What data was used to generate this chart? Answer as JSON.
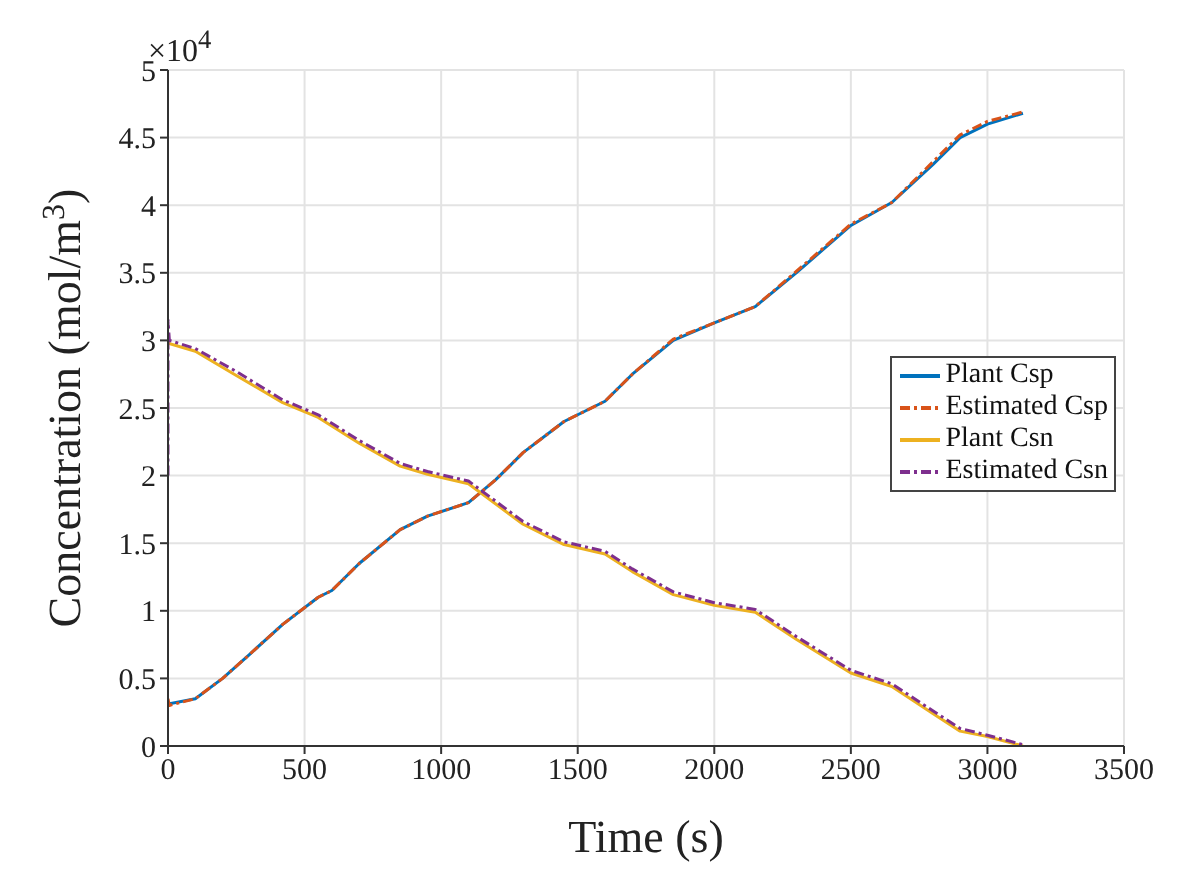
{
  "chart_data": {
    "type": "line",
    "xlabel": "Time (s)",
    "ylabel": "Concentration (mol/m$^{3}$)",
    "annotations": [
      "×10$^{4}$"
    ],
    "xlim": [
      0,
      3500
    ],
    "xticks": [
      0,
      500,
      1000,
      1500,
      2000,
      2500,
      3000,
      3500
    ],
    "ylim": [
      0,
      5
    ],
    "yticks": [
      0,
      0.5,
      1,
      1.5,
      2,
      2.5,
      3,
      3.5,
      4,
      4.5,
      5
    ],
    "grid": true,
    "legend": "right",
    "marker": "none",
    "series": [
      {
        "name": "Plant Csp",
        "color": "#0072bd",
        "line_style": "solid",
        "x": [
          0,
          100,
          200,
          300,
          420,
          550,
          600,
          700,
          850,
          950,
          1100,
          1200,
          1300,
          1450,
          1600,
          1700,
          1850,
          2000,
          2150,
          2300,
          2500,
          2650,
          2800,
          2900,
          3000,
          3130
        ],
        "values": [
          0.31,
          0.35,
          0.5,
          0.68,
          0.9,
          1.1,
          1.15,
          1.35,
          1.6,
          1.7,
          1.8,
          1.97,
          2.17,
          2.4,
          2.55,
          2.75,
          3.0,
          3.13,
          3.25,
          3.5,
          3.85,
          4.02,
          4.3,
          4.5,
          4.6,
          4.68
        ]
      },
      {
        "name": "Estimated Csp",
        "color": "#d95319",
        "line_style": "dashed",
        "x": [
          0,
          5,
          100,
          200,
          300,
          420,
          550,
          600,
          700,
          850,
          950,
          1100,
          1200,
          1300,
          1450,
          1600,
          1700,
          1850,
          2000,
          2150,
          2300,
          2500,
          2650,
          2800,
          2900,
          3000,
          3130
        ],
        "values": [
          0.35,
          0.3,
          0.35,
          0.5,
          0.68,
          0.9,
          1.1,
          1.15,
          1.35,
          1.6,
          1.7,
          1.8,
          1.97,
          2.17,
          2.4,
          2.55,
          2.75,
          3.01,
          3.13,
          3.25,
          3.51,
          3.86,
          4.02,
          4.32,
          4.52,
          4.62,
          4.69
        ]
      },
      {
        "name": "Plant Csn",
        "color": "#edb120",
        "line_style": "solid",
        "x": [
          0,
          100,
          250,
          420,
          550,
          700,
          850,
          950,
          1100,
          1200,
          1300,
          1450,
          1600,
          1700,
          1850,
          2000,
          2150,
          2300,
          2500,
          2650,
          2800,
          2900,
          3000,
          3130
        ],
        "values": [
          2.98,
          2.92,
          2.74,
          2.54,
          2.43,
          2.24,
          2.07,
          2.01,
          1.94,
          1.79,
          1.64,
          1.49,
          1.42,
          1.29,
          1.12,
          1.04,
          0.99,
          0.79,
          0.54,
          0.44,
          0.24,
          0.11,
          0.07,
          0.0
        ]
      },
      {
        "name": "Estimated Csn",
        "color": "#7e2f8e",
        "line_style": "dashed",
        "x": [
          0,
          0,
          5,
          100,
          250,
          420,
          550,
          700,
          850,
          950,
          1100,
          1200,
          1300,
          1450,
          1600,
          1700,
          1850,
          2000,
          2150,
          2300,
          2500,
          2650,
          2800,
          2900,
          3000,
          3130
        ],
        "values": [
          2.0,
          3.15,
          3.0,
          2.94,
          2.77,
          2.56,
          2.45,
          2.26,
          2.09,
          2.03,
          1.96,
          1.81,
          1.66,
          1.51,
          1.44,
          1.31,
          1.14,
          1.06,
          1.01,
          0.81,
          0.56,
          0.46,
          0.26,
          0.13,
          0.08,
          0.01
        ]
      }
    ]
  }
}
